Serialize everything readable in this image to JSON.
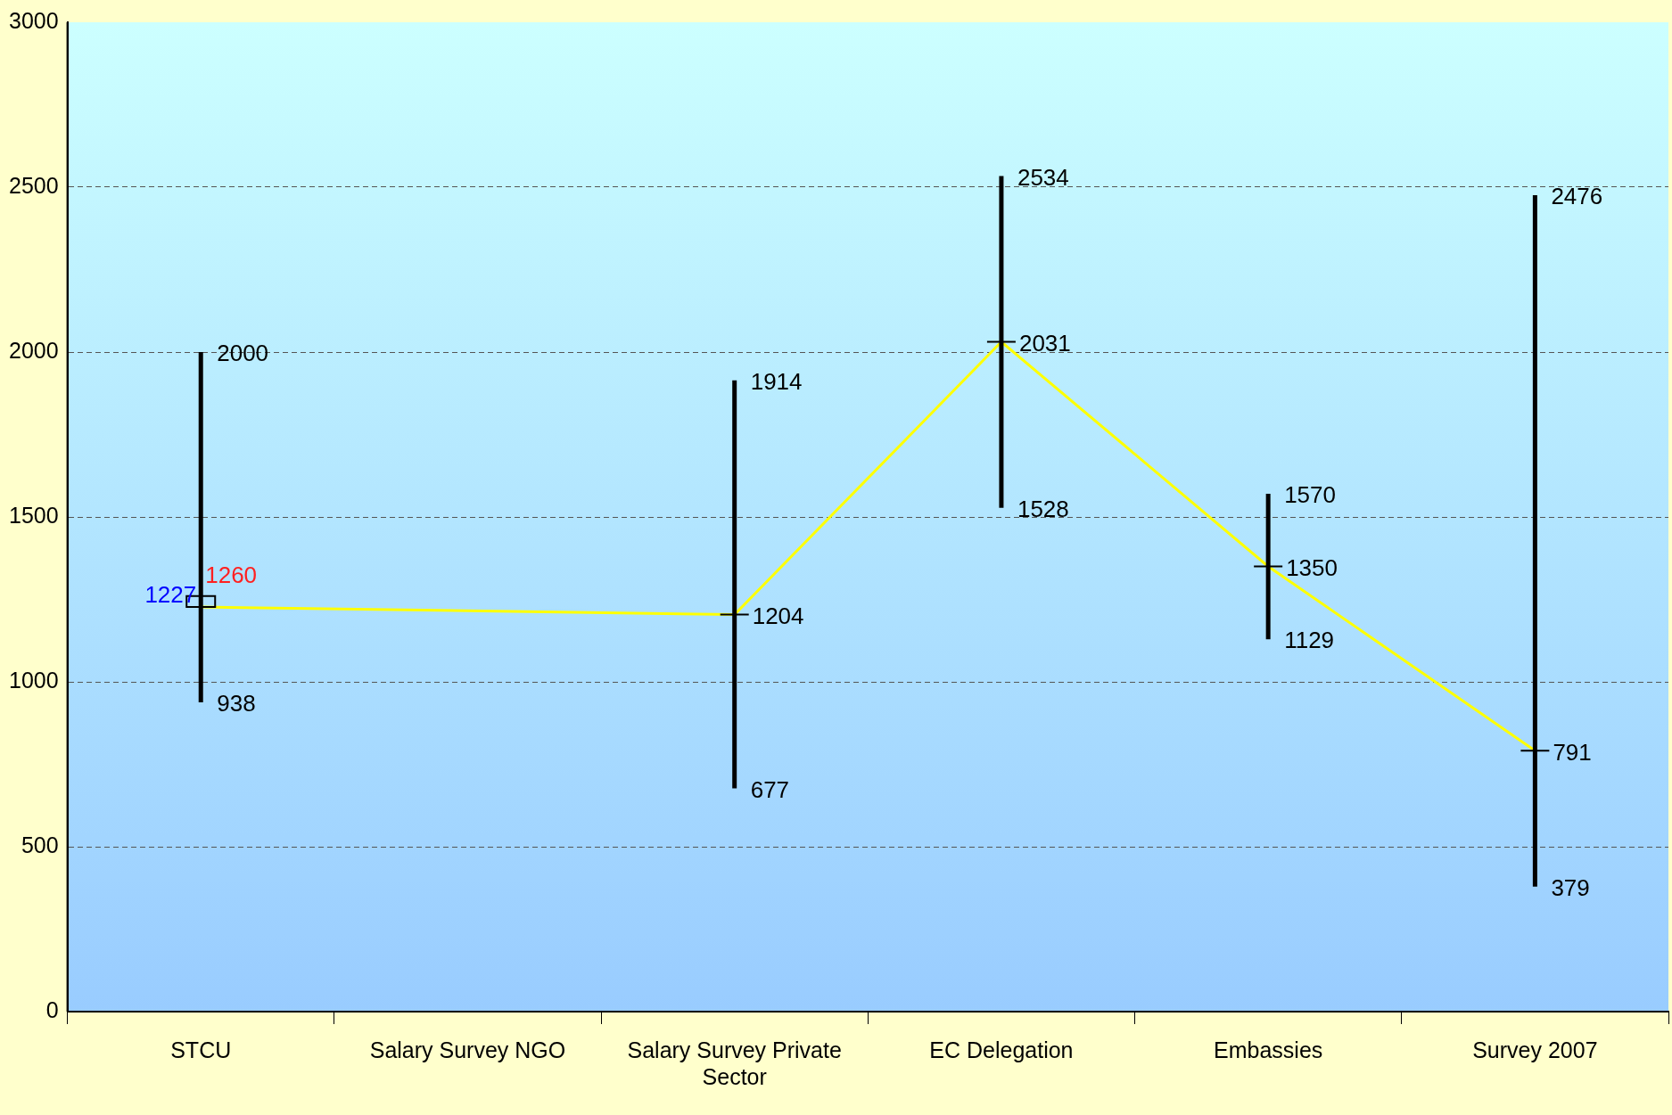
{
  "chart_data": {
    "type": "candlestick",
    "categories": [
      "STCU",
      "Salary Survey NGO",
      "Salary Survey Private Sector",
      "EC Delegation",
      "Embassies",
      "Survey 2007"
    ],
    "ohlc": [
      [
        1260,
        2000,
        938,
        1227
      ],
      null,
      [
        1204,
        1914,
        677,
        1204
      ],
      [
        2031,
        2534,
        1528,
        2031
      ],
      [
        1350,
        1570,
        1129,
        1350
      ],
      [
        791,
        2476,
        379,
        791
      ]
    ],
    "series": [
      {
        "type": "line",
        "color": "#ffff00",
        "values": [
          1227,
          null,
          1204,
          2031,
          1350,
          791
        ]
      }
    ],
    "annotations": [
      {
        "text": "2000",
        "x": "STCU",
        "y": 2000
      },
      {
        "text": "938",
        "x": "STCU",
        "y": 938
      },
      {
        "text": "1260",
        "x": "STCU",
        "y": 1260
      },
      {
        "text": "1914",
        "x": "Salary Survey Private Sector",
        "y": 1914
      },
      {
        "text": "677",
        "x": "Salary Survey Private Sector",
        "y": 677
      },
      {
        "text": "2534",
        "x": "EC Delegation",
        "y": 2534
      },
      {
        "text": "1528",
        "x": "EC Delegation",
        "y": 1528
      },
      {
        "text": "1570",
        "x": "Embassies",
        "y": 1570
      },
      {
        "text": "1129",
        "x": "Embassies",
        "y": 1129
      },
      {
        "text": "2476",
        "x": "Survey 2007",
        "y": 2476
      },
      {
        "text": "379",
        "x": "Survey 2007",
        "y": 379
      }
    ],
    "ylim": [
      0,
      3000
    ],
    "yticks": [
      0,
      500,
      1000,
      1500,
      2000,
      2500,
      3000
    ],
    "grid": "y",
    "legend": false,
    "data_labels": true
  }
}
